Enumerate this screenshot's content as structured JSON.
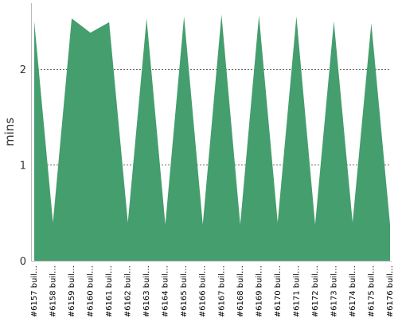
{
  "chart_data": {
    "type": "area",
    "ylabel": "mins",
    "xlabel": "",
    "ylim": [
      0,
      2.68
    ],
    "yticks": [
      0,
      1,
      2
    ],
    "grid": true,
    "categories": [
      "#6157 buil…",
      "#6158 buil…",
      "#6159 buil…",
      "#6160 buil…",
      "#6161 buil…",
      "#6162 buil…",
      "#6163 buil…",
      "#6164 buil…",
      "#6165 buil…",
      "#6166 buil…",
      "#6167 buil…",
      "#6168 buil…",
      "#6169 buil…",
      "#6170 buil…",
      "#6171 buil…",
      "#6172 buil…",
      "#6173 buil…",
      "#6174 buil…",
      "#6175 buil…",
      "#6176 buil…"
    ],
    "series": [
      {
        "values": [
          2.5,
          0.4,
          2.53,
          2.38,
          2.49,
          0.4,
          2.53,
          0.38,
          2.55,
          0.38,
          2.57,
          0.38,
          2.56,
          0.4,
          2.55,
          0.38,
          2.5,
          0.4,
          2.48,
          0.38
        ],
        "color": "#459e6e"
      }
    ]
  }
}
